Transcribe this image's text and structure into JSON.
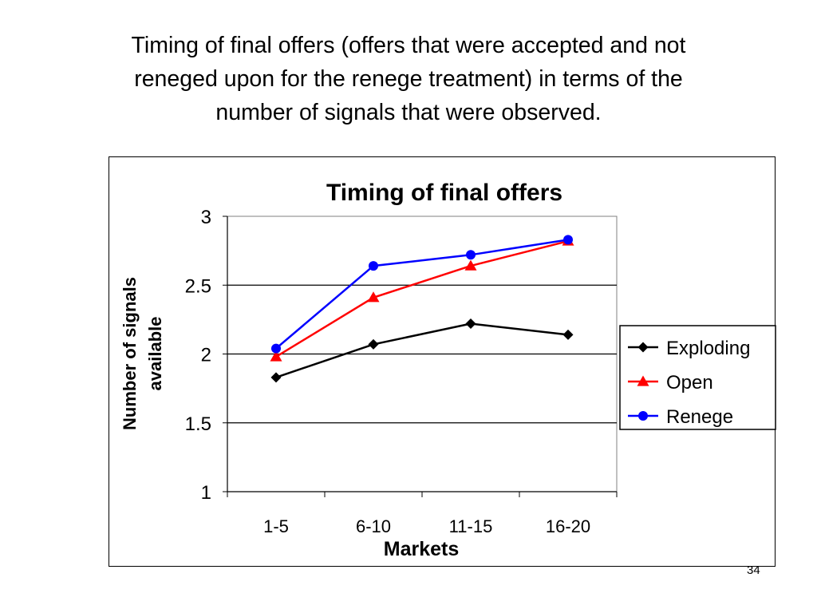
{
  "slide": {
    "title_lines": [
      "Timing of final offers (offers that were accepted and not",
      "reneged upon for the renege treatment) in terms of the",
      "number of signals that were observed."
    ],
    "page_number": "34"
  },
  "chart_data": {
    "type": "line",
    "title": "Timing of final offers",
    "xlabel": "Markets",
    "ylabel_lines": [
      "Number of signals",
      "available"
    ],
    "categories": [
      "1-5",
      "6-10",
      "11-15",
      "16-20"
    ],
    "ylim": [
      1,
      3
    ],
    "yticks": [
      "1",
      "1.5",
      "2",
      "2.5",
      "3"
    ],
    "grid": true,
    "legend_position": "right",
    "series": [
      {
        "name": "Exploding",
        "values": [
          1.83,
          2.07,
          2.22,
          2.14
        ],
        "color": "#000000",
        "marker": "diamond"
      },
      {
        "name": "Open",
        "values": [
          1.98,
          2.41,
          2.64,
          2.82
        ],
        "color": "#ff0000",
        "marker": "triangle"
      },
      {
        "name": "Renege",
        "values": [
          2.04,
          2.64,
          2.72,
          2.83
        ],
        "color": "#0000ff",
        "marker": "circle"
      }
    ]
  }
}
